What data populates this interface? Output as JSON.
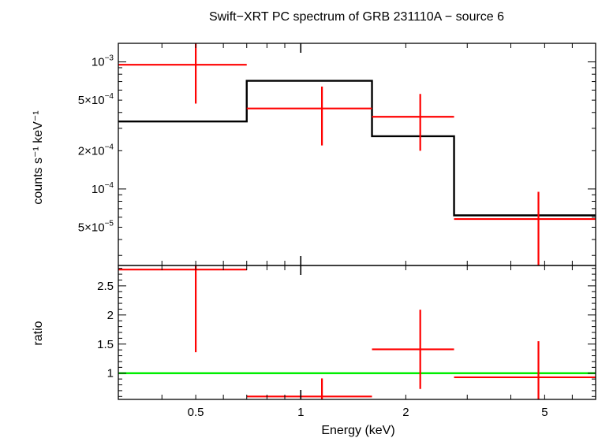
{
  "chart_data": {
    "type": "scatter",
    "title": "Swift−XRT PC spectrum of GRB 231110A − source 6",
    "xlabel": "Energy (keV)",
    "xscale": "log",
    "xlim": [
      0.3,
      7.0
    ],
    "x_ticks": [
      {
        "value": 0.5,
        "label": "0.5"
      },
      {
        "value": 1,
        "label": "1"
      },
      {
        "value": 2,
        "label": "2"
      },
      {
        "value": 5,
        "label": "5"
      }
    ],
    "colors": {
      "data": "#ff0000",
      "model": "#000000",
      "unity": "#00ee00",
      "axes": "#000000"
    },
    "panels": [
      {
        "name": "spectrum",
        "ylabel": "counts s⁻¹ keV⁻¹",
        "yscale": "log",
        "ylim": [
          2.5e-05,
          0.0014
        ],
        "y_ticks": [
          {
            "value": 0.001,
            "mant": "10",
            "exp": "−3"
          },
          {
            "value": 0.0005,
            "mant": "5×10",
            "exp": "−4"
          },
          {
            "value": 0.0002,
            "mant": "2×10",
            "exp": "−4"
          },
          {
            "value": 0.0001,
            "mant": "10",
            "exp": "−4"
          },
          {
            "value": 5e-05,
            "mant": "5×10",
            "exp": "−5"
          }
        ],
        "data": [
          {
            "x": 0.5,
            "xlo": 0.3,
            "xhi": 0.7,
            "y": 0.00095,
            "ylo": 0.00047,
            "yhi": 0.0014
          },
          {
            "x": 1.15,
            "xlo": 0.7,
            "xhi": 1.6,
            "y": 0.00043,
            "ylo": 0.00022,
            "yhi": 0.00064
          },
          {
            "x": 2.2,
            "xlo": 1.6,
            "xhi": 2.75,
            "y": 0.00037,
            "ylo": 0.0002,
            "yhi": 0.00056
          },
          {
            "x": 4.8,
            "xlo": 2.75,
            "xhi": 7.0,
            "y": 5.8e-05,
            "ylo": 2.5e-05,
            "yhi": 9.5e-05
          }
        ],
        "model": [
          {
            "xlo": 0.3,
            "xhi": 0.7,
            "y": 0.00034
          },
          {
            "xlo": 0.7,
            "xhi": 1.6,
            "y": 0.00071
          },
          {
            "xlo": 1.6,
            "xhi": 2.75,
            "y": 0.00026
          },
          {
            "xlo": 2.75,
            "xhi": 7.0,
            "y": 6.2e-05
          }
        ]
      },
      {
        "name": "ratio",
        "ylabel": "ratio",
        "yscale": "linear",
        "ylim": [
          0.55,
          2.85
        ],
        "y_ticks": [
          {
            "value": 1,
            "label": "1"
          },
          {
            "value": 1.5,
            "label": "1.5"
          },
          {
            "value": 2,
            "label": "2"
          },
          {
            "value": 2.5,
            "label": "2.5"
          }
        ],
        "data": [
          {
            "x": 0.5,
            "xlo": 0.3,
            "xhi": 0.7,
            "y": 2.78,
            "ylo": 1.36,
            "yhi": 2.85
          },
          {
            "x": 1.15,
            "xlo": 0.7,
            "xhi": 1.6,
            "y": 0.6,
            "ylo": 0.55,
            "yhi": 0.91
          },
          {
            "x": 2.2,
            "xlo": 1.6,
            "xhi": 2.75,
            "y": 1.41,
            "ylo": 0.73,
            "yhi": 2.09
          },
          {
            "x": 4.8,
            "xlo": 2.75,
            "xhi": 7.0,
            "y": 0.93,
            "ylo": 0.55,
            "yhi": 1.55
          }
        ],
        "reference_line": 1
      }
    ]
  }
}
